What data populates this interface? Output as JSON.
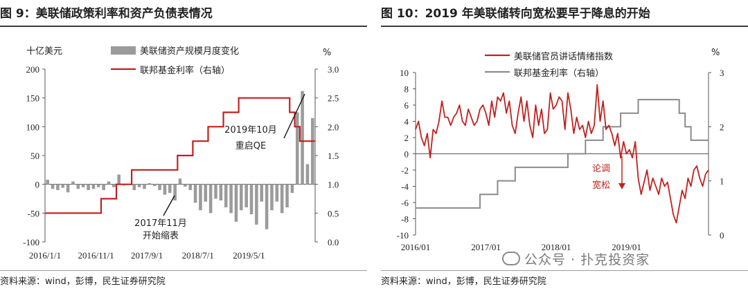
{
  "left": {
    "title": "图 9：美联储政策利率和资产负债表情况",
    "source": "资料来源：wind，彭博，民生证券研究院"
  },
  "right": {
    "title": "图 10：2019 年美联储转向宽松要早于降息的开始",
    "source": "资料来源：wind，彭博，民生证券研究院",
    "watermark": "公众号 · 扑克投资家"
  },
  "colors": {
    "red": "#c0201e",
    "gray": "#8a8a8a",
    "bar": "#9b9b9b"
  },
  "chart_data": [
    {
      "type": "bar+line",
      "title": "图 9：美联储政策利率和资产负债表情况",
      "left_unit": "十亿美元",
      "right_unit": "%",
      "ylim_left": [
        -100,
        200
      ],
      "yticks_left": [
        -100,
        -50,
        0,
        50,
        100,
        150,
        200
      ],
      "ylim_right": [
        0.0,
        3.0
      ],
      "yticks_right": [
        "0.0",
        "0.5",
        "1.0",
        "1.5",
        "2.0",
        "2.5",
        "3.0"
      ],
      "x_tick_labels": [
        "2016/1/1",
        "2016/11/1",
        "2017/9/1",
        "2018/7/1",
        "2019/5/1"
      ],
      "x_tick_index": [
        0,
        10,
        20,
        30,
        40
      ],
      "series": [
        {
          "name": "美联储资产规模月度变化",
          "axis": "left",
          "kind": "bar",
          "values": [
            8,
            -8,
            -10,
            -6,
            -14,
            5,
            -8,
            -5,
            -10,
            -8,
            -5,
            -10,
            5,
            -5,
            17,
            -2,
            -1,
            -10,
            -5,
            -8,
            2,
            -3,
            -10,
            -18,
            -15,
            -28,
            10,
            -4,
            -10,
            -32,
            -45,
            -30,
            -50,
            -25,
            -28,
            -40,
            -50,
            -65,
            -45,
            -40,
            -52,
            -70,
            -30,
            -78,
            -45,
            -30,
            -50,
            -40,
            -15,
            125,
            162,
            35,
            115
          ]
        },
        {
          "name": "联邦基金利率（右轴）",
          "axis": "right",
          "kind": "line",
          "values": [
            0.5,
            0.5,
            0.5,
            0.5,
            0.5,
            0.5,
            0.5,
            0.5,
            0.5,
            0.5,
            0.5,
            0.75,
            0.75,
            0.75,
            1.0,
            1.0,
            1.0,
            1.25,
            1.25,
            1.25,
            1.25,
            1.25,
            1.25,
            1.25,
            1.25,
            1.25,
            1.5,
            1.5,
            1.5,
            1.75,
            1.75,
            1.75,
            2.0,
            2.0,
            2.0,
            2.25,
            2.25,
            2.25,
            2.5,
            2.5,
            2.5,
            2.5,
            2.5,
            2.5,
            2.5,
            2.5,
            2.5,
            2.5,
            2.25,
            2.0,
            1.75,
            1.75,
            1.75
          ]
        }
      ],
      "annotations": [
        {
          "text": [
            "2019年10月",
            "重启QE"
          ]
        },
        {
          "text": [
            "2017年11月",
            "开始缩表"
          ]
        }
      ]
    },
    {
      "type": "line",
      "title": "图 10：2019 年美联储转向宽松要早于降息的开始",
      "right_unit": "%",
      "ylim_left": [
        -10,
        10
      ],
      "yticks_left": [
        -10,
        -8,
        -6,
        -4,
        -2,
        0,
        2,
        4,
        6,
        8,
        10
      ],
      "ylim_right": [
        0,
        3
      ],
      "yticks_right": [
        0,
        1,
        2,
        3
      ],
      "x_tick_labels": [
        "2016/01",
        "2017/01",
        "2018/01",
        "2019/01"
      ],
      "x_tick_month": [
        0,
        12,
        24,
        36
      ],
      "x_range_months": [
        0,
        50
      ],
      "series": [
        {
          "name": "美联储官员讲话情绪指数",
          "axis": "left",
          "x_months": [
            0,
            0.5,
            1,
            1.5,
            2,
            2.5,
            3,
            3.5,
            4,
            4.5,
            5,
            5.5,
            6,
            6.5,
            7,
            7.5,
            8,
            8.5,
            9,
            9.5,
            10,
            10.5,
            11,
            11.5,
            12,
            12.5,
            13,
            13.5,
            14,
            14.5,
            15,
            15.5,
            16,
            16.5,
            17,
            17.5,
            18,
            18.5,
            19,
            19.5,
            20,
            20.5,
            21,
            21.5,
            22,
            22.5,
            23,
            23.5,
            24,
            24.5,
            25,
            25.5,
            26,
            26.5,
            27,
            27.5,
            28,
            28.5,
            29,
            29.5,
            30,
            30.5,
            31,
            31.5,
            32,
            32.5,
            33,
            33.5,
            34,
            34.5,
            35,
            35.5,
            36,
            36.5,
            37,
            37.5,
            38,
            38.5,
            39,
            39.5,
            40,
            40.5,
            41,
            41.5,
            42,
            42.5,
            43,
            43.5,
            44,
            44.5,
            45,
            45.5,
            46,
            46.5,
            47,
            47.5,
            48,
            48.5,
            49,
            49.5,
            50
          ],
          "values": [
            3,
            4,
            2,
            1,
            2.5,
            -0.5,
            3,
            2.5,
            4,
            6.5,
            4.5,
            4.5,
            3.5,
            4.5,
            5,
            6,
            4,
            3.5,
            5.5,
            4.5,
            3.5,
            4,
            5.5,
            6,
            5,
            3.5,
            6.5,
            4.5,
            7,
            6.5,
            7.5,
            5,
            6.5,
            3.5,
            2.5,
            5,
            7,
            4,
            6.5,
            3.5,
            2,
            6,
            3.5,
            5.5,
            2.5,
            3,
            7.5,
            5.5,
            6,
            7,
            6.5,
            3,
            7.5,
            5.5,
            2.5,
            4.5,
            3,
            3.5,
            2,
            4,
            2.5,
            3.5,
            8.5,
            4,
            6.5,
            3,
            3.5,
            2.5,
            1,
            2.5,
            -0.5,
            1.5,
            0,
            0.5,
            -0.5,
            1.5,
            -3,
            -5,
            -3.5,
            -2,
            -4.5,
            -3,
            -4,
            -5,
            -3,
            -4,
            -3.5,
            -5.5,
            -7.5,
            -8.5,
            -6.5,
            -4.5,
            -5.5,
            -3,
            -4,
            -2,
            -1.5,
            -3,
            -4,
            -2.5,
            -2
          ]
        },
        {
          "name": "联邦基金利率（右轴）",
          "axis": "right",
          "x_months": [
            0,
            11,
            11,
            14,
            14,
            17,
            17,
            26,
            26,
            29,
            29,
            32,
            32,
            35,
            35,
            38,
            38,
            45,
            45,
            46,
            46,
            47,
            47,
            50
          ],
          "values": [
            0.5,
            0.5,
            0.75,
            0.75,
            1.0,
            1.0,
            1.25,
            1.25,
            1.5,
            1.5,
            1.75,
            1.75,
            2.0,
            2.0,
            2.25,
            2.25,
            2.5,
            2.5,
            2.25,
            2.25,
            2.0,
            2.0,
            1.75,
            1.75
          ]
        }
      ],
      "annotations": [
        {
          "text": [
            "论调",
            "宽松"
          ]
        }
      ]
    }
  ]
}
